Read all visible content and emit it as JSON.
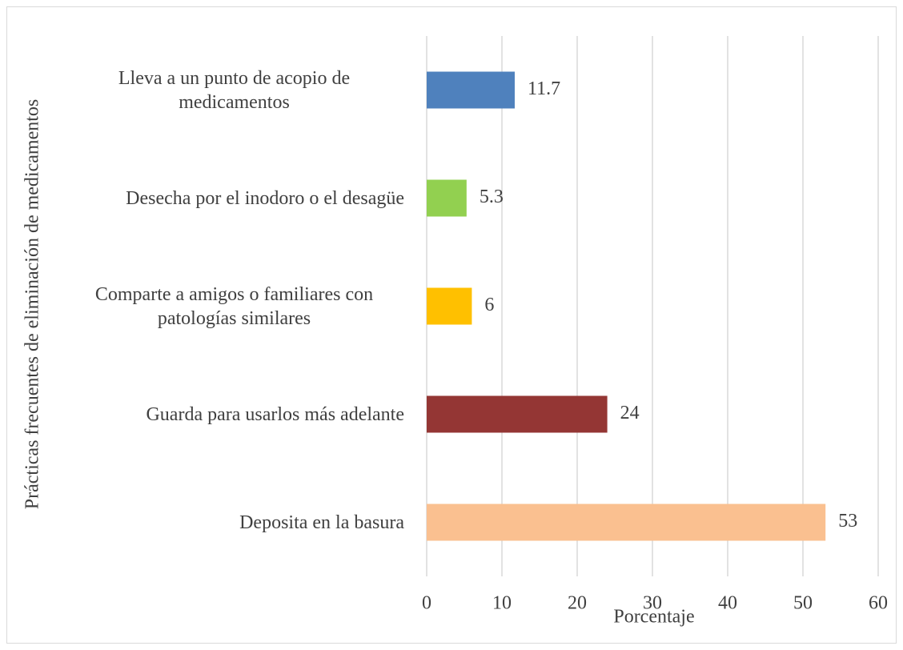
{
  "chart_data": {
    "type": "hbar",
    "categories": [
      "Lleva a un punto de acopio de medicamentos",
      "Desecha por el inodoro o el desagüe",
      "Comparte a amigos o familiares con patologías similares",
      "Guarda para usarlos más adelante",
      "Deposita en la basura"
    ],
    "values": [
      11.7,
      5.3,
      6,
      24,
      53
    ],
    "colors": [
      "#4f81bd",
      "#92d050",
      "#ffc000",
      "#943634",
      "#fac090"
    ],
    "xlim": [
      0,
      60
    ],
    "xticks": [
      0,
      10,
      20,
      30,
      40,
      50,
      60
    ],
    "grid": true,
    "xlabel": "Porcentaje",
    "ylabel": "Prácticas frecuentes de eliminación de medicamentos"
  }
}
